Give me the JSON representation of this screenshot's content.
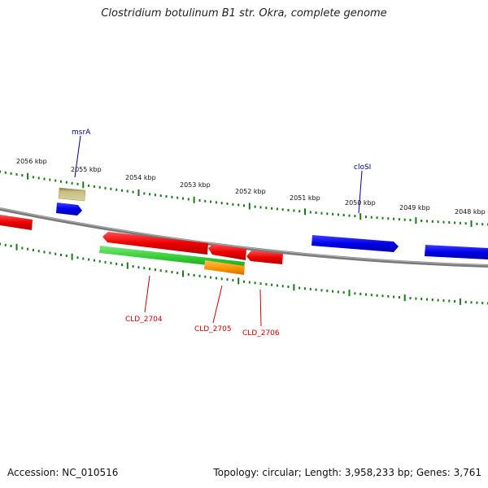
{
  "title": "Clostridium botulinum B1 str. Okra, complete genome",
  "footer": {
    "accession": "Accession: NC_010516",
    "summary": "Topology: circular; Length: 3,958,233 bp; Genes: 3,761"
  },
  "colors": {
    "backbone": "#808080",
    "ruler_tick": "#1a7a1a",
    "label_blue": "#00008b",
    "label_red": "#cc0000",
    "gene_red": "#ee0000",
    "gene_blue": "#0000ee",
    "gene_green": "#33cc33",
    "gene_orange": "#ff9900",
    "gene_khaki": "#b8b070"
  },
  "ruler_labels": [
    "2056 kbp",
    "2055 kbp",
    "2054 kbp",
    "2053 kbp",
    "2052 kbp",
    "2051 kbp",
    "2050 kbp",
    "2049 kbp",
    "2048 kbp"
  ],
  "gene_labels": {
    "msrA": "msrA",
    "cloSI": "cloSI",
    "cld2704": "CLD_2704",
    "cld2705": "CLD_2705",
    "cld2706": "CLD_2706"
  }
}
